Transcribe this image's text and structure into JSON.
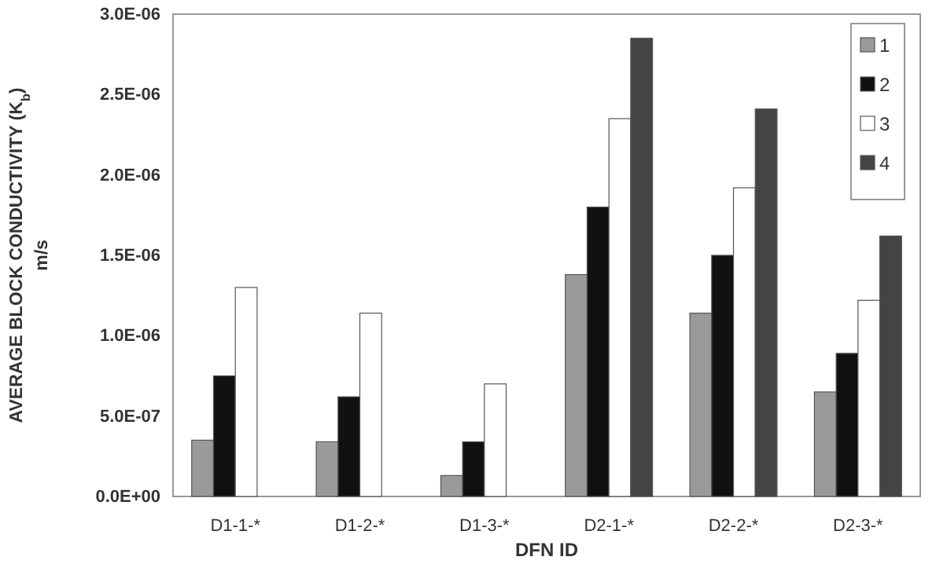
{
  "chart_data": {
    "type": "bar",
    "xlabel": "DFN ID",
    "ylabel": "AVERAGE  BLOCK CONDUCTIVITY (K$_{b}$)\nm/s",
    "categories": [
      "D1-1-*",
      "D1-2-*",
      "D1-3-*",
      "D2-1-*",
      "D2-2-*",
      "D2-3-*"
    ],
    "series": [
      {
        "name": "1",
        "color": "#9a9a9a",
        "values": [
          3.5e-07,
          3.4e-07,
          1.3e-07,
          1.38e-06,
          1.14e-06,
          6.5e-07
        ]
      },
      {
        "name": "2",
        "color": "#111111",
        "values": [
          7.5e-07,
          6.2e-07,
          3.4e-07,
          1.8e-06,
          1.5e-06,
          8.9e-07
        ]
      },
      {
        "name": "3",
        "color": "#ffffff",
        "values": [
          1.3e-06,
          1.14e-06,
          7e-07,
          2.35e-06,
          1.92e-06,
          1.22e-06
        ]
      },
      {
        "name": "4",
        "color": "#444444",
        "values": [
          null,
          null,
          null,
          2.85e-06,
          2.41e-06,
          1.62e-06
        ]
      }
    ],
    "ylim": [
      0,
      3e-06
    ],
    "yticks": [
      {
        "value": 0,
        "label": "0.0E+00"
      },
      {
        "value": 5e-07,
        "label": "5.0E-07"
      },
      {
        "value": 1e-06,
        "label": "1.0E-06"
      },
      {
        "value": 1.5e-06,
        "label": "1.5E-06"
      },
      {
        "value": 2e-06,
        "label": "2.0E-06"
      },
      {
        "value": 2.5e-06,
        "label": "2.5E-06"
      },
      {
        "value": 3e-06,
        "label": "3.0E-06"
      }
    ],
    "grid": false,
    "legend": "top right"
  }
}
